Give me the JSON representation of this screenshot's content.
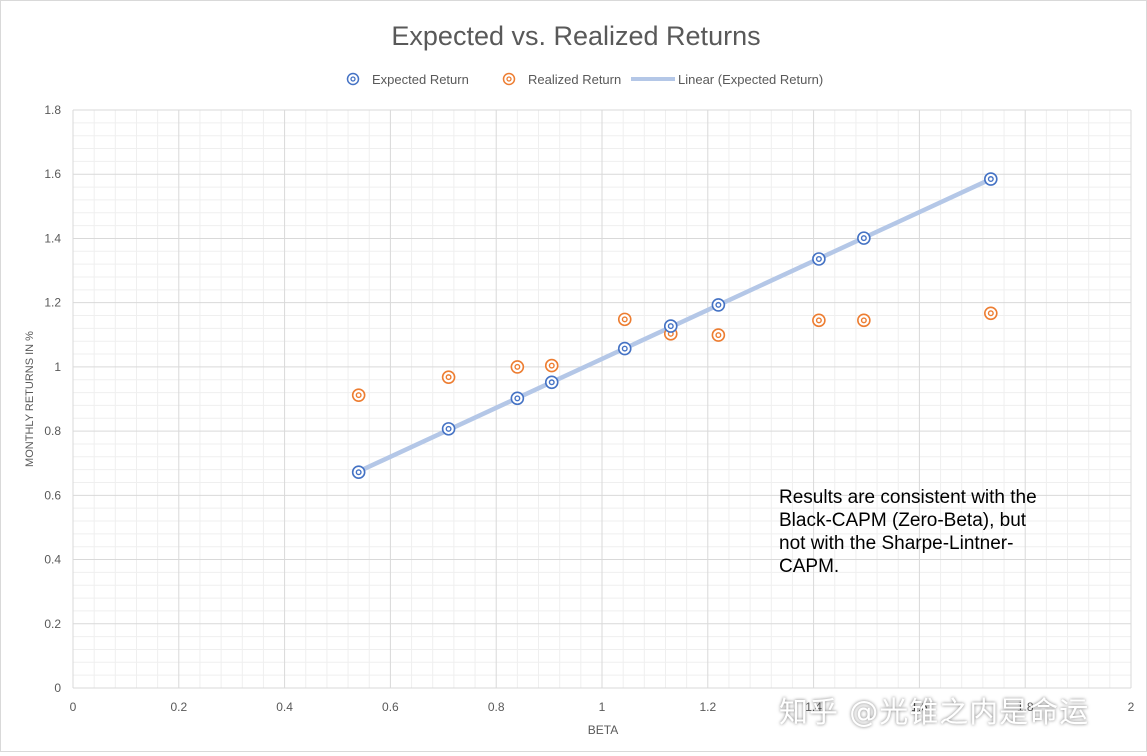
{
  "chart_data": {
    "type": "scatter",
    "title": "Expected vs. Realized Returns",
    "xlabel": "BETA",
    "ylabel": "MONTHLY RETURNS IN %",
    "xlim": [
      0,
      2
    ],
    "ylim": [
      0,
      1.8
    ],
    "x_ticks": [
      "0",
      "0.2",
      "0.4",
      "0.6",
      "0.8",
      "1",
      "1.2",
      "1.4",
      "1.6",
      "1.8",
      "2"
    ],
    "y_ticks": [
      "0",
      "0.2",
      "0.4",
      "0.6",
      "0.8",
      "1",
      "1.2",
      "1.4",
      "1.6",
      "1.8"
    ],
    "grid": true,
    "legend_position": "top",
    "series": [
      {
        "name": "Expected Return",
        "color": "#4472c4",
        "marker": "double-circle",
        "points": [
          {
            "x": 0.54,
            "y": 0.672
          },
          {
            "x": 0.71,
            "y": 0.807
          },
          {
            "x": 0.84,
            "y": 0.902
          },
          {
            "x": 0.905,
            "y": 0.952
          },
          {
            "x": 1.043,
            "y": 1.057
          },
          {
            "x": 1.13,
            "y": 1.127
          },
          {
            "x": 1.22,
            "y": 1.193
          },
          {
            "x": 1.41,
            "y": 1.336
          },
          {
            "x": 1.495,
            "y": 1.401
          },
          {
            "x": 1.735,
            "y": 1.585
          }
        ]
      },
      {
        "name": "Realized Return",
        "color": "#ed7d31",
        "marker": "double-circle",
        "points": [
          {
            "x": 0.54,
            "y": 0.912
          },
          {
            "x": 0.71,
            "y": 0.968
          },
          {
            "x": 0.84,
            "y": 1.0
          },
          {
            "x": 0.905,
            "y": 1.004
          },
          {
            "x": 1.043,
            "y": 1.148
          },
          {
            "x": 1.13,
            "y": 1.103
          },
          {
            "x": 1.22,
            "y": 1.099
          },
          {
            "x": 1.41,
            "y": 1.145
          },
          {
            "x": 1.495,
            "y": 1.145
          },
          {
            "x": 1.735,
            "y": 1.167
          }
        ]
      },
      {
        "name": "Linear (Expected Return)",
        "color": "#b4c7e7",
        "kind": "trendline",
        "fit": "linear",
        "x_range": [
          0.54,
          1.735
        ]
      }
    ]
  },
  "annotation": {
    "lines": [
      "Results are consistent with the",
      "Black-CAPM (Zero-Beta), but",
      "not with the Sharpe-Lintner-",
      "CAPM."
    ]
  },
  "watermark": {
    "text": "知乎 @光锥之内是命运"
  },
  "colors": {
    "gridline_major": "#d9d9d9",
    "gridline_minor": "#efefef",
    "axis_text": "#595959",
    "title": "#595959"
  }
}
